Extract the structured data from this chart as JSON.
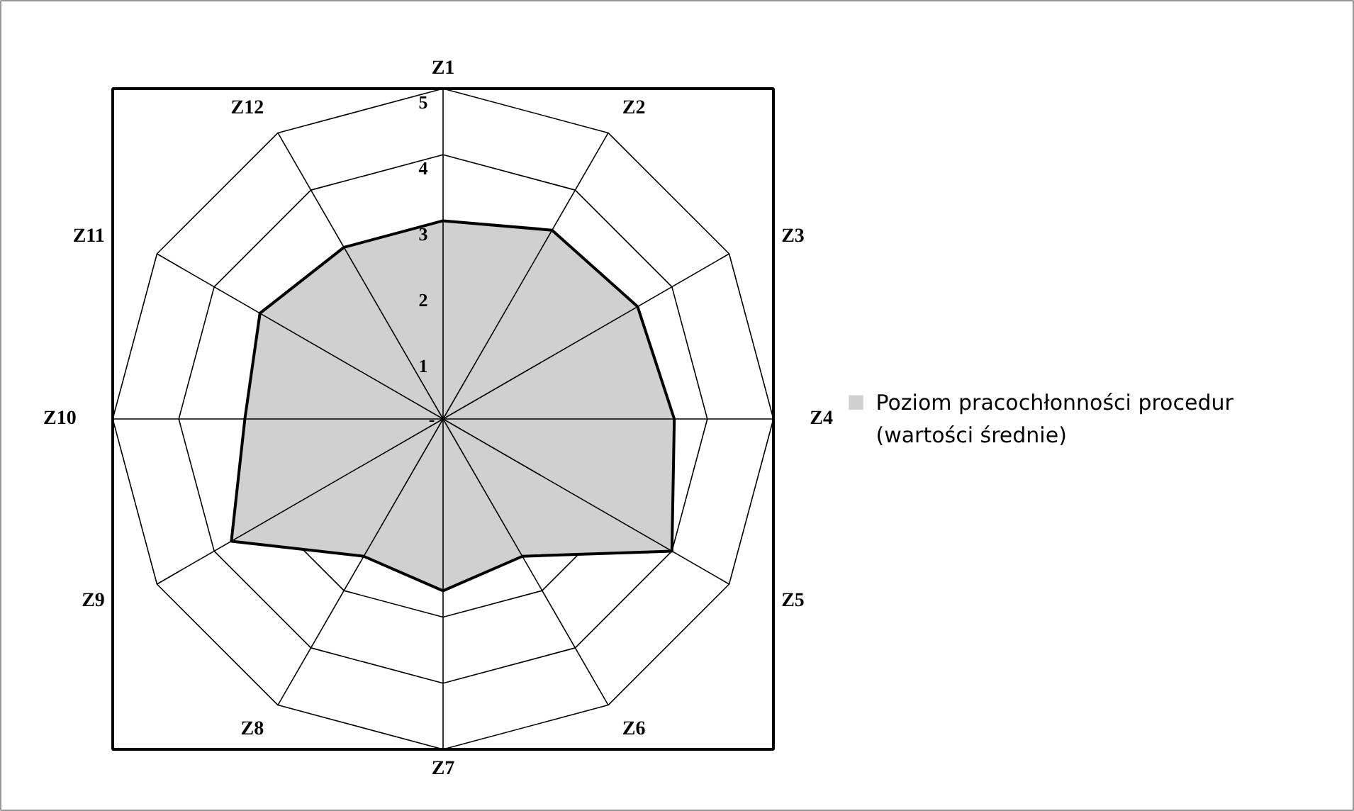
{
  "chart_data": {
    "type": "radar",
    "categories": [
      "Z1",
      "Z2",
      "Z3",
      "Z4",
      "Z5",
      "Z6",
      "Z7",
      "Z8",
      "Z9",
      "Z10",
      "Z11",
      "Z12"
    ],
    "series": [
      {
        "name": "Poziom pracochłonności procedur (wartości średnie)",
        "color": "#d0d0d0",
        "values": [
          3.0,
          3.3,
          3.4,
          3.5,
          4.0,
          2.4,
          2.6,
          2.4,
          3.7,
          3.0,
          3.2,
          3.0
        ]
      }
    ],
    "ylim": [
      0,
      5
    ],
    "yticks": [
      {
        "value": 0,
        "label": "-"
      },
      1,
      2,
      3,
      4,
      5
    ],
    "grid": true,
    "legend": "right"
  }
}
